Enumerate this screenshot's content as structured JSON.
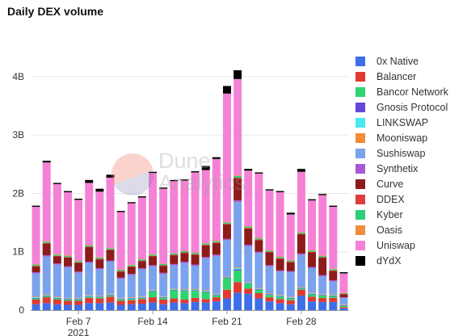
{
  "title": "Daily DEX volume",
  "watermark": {
    "line1": "Dune",
    "line2": "Analytics"
  },
  "chart_data": {
    "type": "bar",
    "stacked": true,
    "title": "Daily DEX volume",
    "xlabel": "",
    "ylabel": "",
    "ylim": [
      0,
      4.4
    ],
    "y_ticks": [
      {
        "value": 0,
        "label": "0"
      },
      {
        "value": 1,
        "label": "1B"
      },
      {
        "value": 2,
        "label": "2B"
      },
      {
        "value": 3,
        "label": "3B"
      },
      {
        "value": 4,
        "label": "4B"
      }
    ],
    "x_ticks": [
      {
        "index": 4,
        "label": "Feb 7",
        "sublabel": "2021"
      },
      {
        "index": 11,
        "label": "Feb 14",
        "sublabel": ""
      },
      {
        "index": 18,
        "label": "Feb 21",
        "sublabel": ""
      },
      {
        "index": 25,
        "label": "Feb 28",
        "sublabel": ""
      }
    ],
    "grid": "horizontal",
    "legend_position": "right",
    "categories": [
      "Feb 3",
      "Feb 4",
      "Feb 5",
      "Feb 6",
      "Feb 7",
      "Feb 8",
      "Feb 9",
      "Feb 10",
      "Feb 11",
      "Feb 12",
      "Feb 13",
      "Feb 14",
      "Feb 15",
      "Feb 16",
      "Feb 17",
      "Feb 18",
      "Feb 19",
      "Feb 20",
      "Feb 21",
      "Feb 22",
      "Feb 23",
      "Feb 24",
      "Feb 25",
      "Feb 26",
      "Feb 27",
      "Feb 28",
      "Mar 1",
      "Mar 2",
      "Mar 3",
      "Mar 4"
    ],
    "series": [
      {
        "name": "0x Native",
        "color": "#3e6ee8",
        "values": [
          0.1,
          0.12,
          0.1,
          0.09,
          0.09,
          0.12,
          0.12,
          0.13,
          0.09,
          0.1,
          0.11,
          0.13,
          0.1,
          0.13,
          0.12,
          0.14,
          0.13,
          0.15,
          0.2,
          0.3,
          0.28,
          0.2,
          0.15,
          0.12,
          0.1,
          0.25,
          0.15,
          0.14,
          0.14,
          0.03
        ]
      },
      {
        "name": "Balancer",
        "color": "#e03a2f",
        "values": [
          0.08,
          0.1,
          0.08,
          0.07,
          0.07,
          0.09,
          0.08,
          0.1,
          0.07,
          0.07,
          0.08,
          0.09,
          0.08,
          0.07,
          0.06,
          0.07,
          0.06,
          0.07,
          0.15,
          0.18,
          0.09,
          0.09,
          0.07,
          0.07,
          0.07,
          0.1,
          0.08,
          0.07,
          0.07,
          0.02
        ]
      },
      {
        "name": "Bancor Network",
        "color": "#2ed46e",
        "values": [
          0.02,
          0.02,
          0.02,
          0.02,
          0.02,
          0.02,
          0.02,
          0.02,
          0.02,
          0.02,
          0.02,
          0.1,
          0.03,
          0.14,
          0.15,
          0.12,
          0.12,
          0.03,
          0.2,
          0.2,
          0.08,
          0.06,
          0.04,
          0.04,
          0.03,
          0.02,
          0.04,
          0.04,
          0.03,
          0.02
        ]
      },
      {
        "name": "Gnosis Protocol",
        "color": "#6446d8",
        "values": [
          0.01,
          0.01,
          0.01,
          0.01,
          0.01,
          0.01,
          0.01,
          0.01,
          0.01,
          0.01,
          0.01,
          0.01,
          0.01,
          0.01,
          0.01,
          0.01,
          0.01,
          0.01,
          0.01,
          0.02,
          0.01,
          0.01,
          0.01,
          0.01,
          0.01,
          0.01,
          0.01,
          0.01,
          0.01,
          0.01
        ]
      },
      {
        "name": "LINKSWAP",
        "color": "#4ae8f0",
        "values": [
          0.01,
          0.01,
          0.01,
          0.01,
          0.01,
          0.01,
          0.01,
          0.01,
          0.01,
          0.01,
          0.01,
          0.01,
          0.01,
          0.01,
          0.01,
          0.01,
          0.01,
          0.01,
          0.01,
          0.02,
          0.01,
          0.01,
          0.01,
          0.01,
          0.01,
          0.01,
          0.01,
          0.01,
          0.01,
          0.01
        ]
      },
      {
        "name": "Mooniswap",
        "color": "#f58a38",
        "values": [
          0.01,
          0.01,
          0.01,
          0.01,
          0.01,
          0.01,
          0.01,
          0.01,
          0.01,
          0.01,
          0.01,
          0.01,
          0.01,
          0.01,
          0.01,
          0.01,
          0.01,
          0.01,
          0.01,
          0.01,
          0.01,
          0.01,
          0.01,
          0.01,
          0.01,
          0.01,
          0.01,
          0.01,
          0.01,
          0.01
        ]
      },
      {
        "name": "Sushiswap",
        "color": "#7ba2ec",
        "values": [
          0.4,
          0.65,
          0.55,
          0.52,
          0.43,
          0.55,
          0.45,
          0.55,
          0.33,
          0.38,
          0.46,
          0.4,
          0.38,
          0.4,
          0.45,
          0.4,
          0.55,
          0.65,
          0.62,
          1.12,
          0.62,
          0.6,
          0.46,
          0.4,
          0.42,
          0.55,
          0.42,
          0.3,
          0.22,
          0.11
        ]
      },
      {
        "name": "Synthetix",
        "color": "#a85ad6",
        "values": [
          0.02,
          0.02,
          0.02,
          0.02,
          0.02,
          0.02,
          0.02,
          0.02,
          0.02,
          0.02,
          0.02,
          0.02,
          0.02,
          0.02,
          0.02,
          0.02,
          0.02,
          0.02,
          0.02,
          0.03,
          0.02,
          0.02,
          0.02,
          0.02,
          0.02,
          0.02,
          0.02,
          0.02,
          0.02,
          0.01
        ]
      },
      {
        "name": "Curve",
        "color": "#8e1b1b",
        "values": [
          0.1,
          0.2,
          0.12,
          0.15,
          0.15,
          0.25,
          0.15,
          0.18,
          0.1,
          0.12,
          0.12,
          0.15,
          0.12,
          0.15,
          0.15,
          0.17,
          0.2,
          0.2,
          0.25,
          0.38,
          0.28,
          0.2,
          0.22,
          0.2,
          0.15,
          0.33,
          0.25,
          0.3,
          0.16,
          0.05
        ]
      },
      {
        "name": "DDEX",
        "color": "#e23b3b",
        "values": [
          0.01,
          0.01,
          0.01,
          0.01,
          0.01,
          0.01,
          0.01,
          0.01,
          0.01,
          0.01,
          0.01,
          0.01,
          0.01,
          0.01,
          0.01,
          0.01,
          0.01,
          0.01,
          0.01,
          0.01,
          0.01,
          0.01,
          0.01,
          0.01,
          0.01,
          0.01,
          0.01,
          0.01,
          0.01,
          0.01
        ]
      },
      {
        "name": "Kyber",
        "color": "#2ecf7a",
        "values": [
          0.02,
          0.02,
          0.02,
          0.02,
          0.02,
          0.02,
          0.02,
          0.02,
          0.02,
          0.02,
          0.02,
          0.02,
          0.02,
          0.02,
          0.02,
          0.02,
          0.02,
          0.02,
          0.02,
          0.03,
          0.02,
          0.02,
          0.02,
          0.02,
          0.02,
          0.02,
          0.02,
          0.02,
          0.02,
          0.01
        ]
      },
      {
        "name": "Oasis",
        "color": "#f28c3c",
        "values": [
          0.01,
          0.01,
          0.01,
          0.01,
          0.01,
          0.01,
          0.01,
          0.01,
          0.01,
          0.01,
          0.01,
          0.01,
          0.01,
          0.01,
          0.01,
          0.01,
          0.01,
          0.01,
          0.01,
          0.01,
          0.01,
          0.01,
          0.01,
          0.01,
          0.01,
          0.01,
          0.01,
          0.01,
          0.01,
          0.01
        ]
      },
      {
        "name": "Uniswap",
        "color": "#f481d6",
        "values": [
          0.98,
          1.35,
          1.2,
          1.08,
          1.04,
          1.06,
          1.12,
          1.2,
          0.98,
          1.05,
          1.05,
          1.39,
          1.28,
          1.23,
          1.2,
          1.37,
          1.25,
          1.4,
          2.2,
          1.65,
          0.95,
          1.1,
          1.02,
          1.1,
          0.78,
          1.03,
          0.85,
          1.03,
          1.06,
          0.33
        ]
      },
      {
        "name": "dYdX",
        "color": "#000000",
        "values": [
          0.02,
          0.03,
          0.02,
          0.02,
          0.02,
          0.05,
          0.05,
          0.05,
          0.02,
          0.02,
          0.02,
          0.02,
          0.02,
          0.02,
          0.02,
          0.02,
          0.07,
          0.03,
          0.13,
          0.15,
          0.03,
          0.02,
          0.02,
          0.02,
          0.03,
          0.05,
          0.02,
          0.02,
          0.02,
          0.02
        ]
      }
    ]
  }
}
